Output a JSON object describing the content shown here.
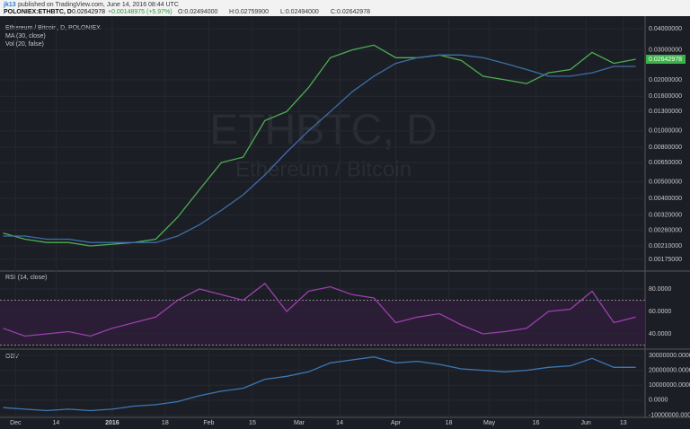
{
  "header": {
    "publisher": "jk13",
    "published": "published on TradingView.com, June 14, 2016 08:44 UTC",
    "symbol": "POLONIEX:ETHBTC, D",
    "last": "0.02642978",
    "change": "+0.00148975 (+5.97%)",
    "open": "O:0.02494000",
    "high": "H:0.02759900",
    "low": "L:0.02494000",
    "close": "C:0.02642978"
  },
  "chart_data": [
    {
      "type": "line",
      "title": "Ethereum / Bitcoin, D, POLONIEX",
      "notes": [
        "Vol (20, false)"
      ],
      "watermark": "ETHBTC, D",
      "watermark_sub": "Ethereum / Bitcoin",
      "log_scale": true,
      "x": [
        -4,
        3,
        10,
        17,
        24,
        31,
        38,
        45,
        52,
        59,
        66,
        73,
        80,
        87,
        94,
        101,
        108,
        115,
        122,
        129,
        136,
        143,
        150,
        157,
        164,
        171,
        178,
        185,
        192,
        199
      ],
      "xlim": [
        -5,
        202
      ],
      "xticks": [
        {
          "value": 0,
          "label": "Dec"
        },
        {
          "value": 13,
          "label": "14"
        },
        {
          "value": 31,
          "label": "2016"
        },
        {
          "value": 48,
          "label": "18"
        },
        {
          "value": 62,
          "label": "Feb"
        },
        {
          "value": 76,
          "label": "15"
        },
        {
          "value": 91,
          "label": "Mar"
        },
        {
          "value": 104,
          "label": "14"
        },
        {
          "value": 122,
          "label": "Apr"
        },
        {
          "value": 139,
          "label": "18"
        },
        {
          "value": 152,
          "label": "May"
        },
        {
          "value": 167,
          "label": "16"
        },
        {
          "value": 183,
          "label": "Jun"
        },
        {
          "value": 195,
          "label": "13"
        }
      ],
      "series": [
        {
          "name": "Ethereum / Bitcoin",
          "color": "#4caf50",
          "values": [
            0.0025,
            0.0023,
            0.0022,
            0.0022,
            0.0021,
            0.00215,
            0.0022,
            0.0023,
            0.0031,
            0.0045,
            0.0065,
            0.007,
            0.0115,
            0.013,
            0.018,
            0.027,
            0.03,
            0.032,
            0.027,
            0.027,
            0.028,
            0.026,
            0.021,
            0.02,
            0.019,
            0.022,
            0.023,
            0.029,
            0.025,
            0.02642978
          ]
        },
        {
          "name": "MA (30, close)",
          "color": "#3c6fa5",
          "values": [
            0.0024,
            0.0024,
            0.0023,
            0.0023,
            0.0022,
            0.0022,
            0.0022,
            0.0022,
            0.0024,
            0.0028,
            0.0034,
            0.0042,
            0.0055,
            0.0075,
            0.01,
            0.013,
            0.017,
            0.021,
            0.025,
            0.027,
            0.028,
            0.028,
            0.027,
            0.025,
            0.023,
            0.021,
            0.021,
            0.022,
            0.024,
            0.024
          ]
        }
      ],
      "last_label": {
        "value": 0.02642978,
        "label": "0.02642978"
      },
      "ylim": [
        0.00153,
        0.0463
      ],
      "yticks": [
        {
          "value": 0.04,
          "label": "0.04000000"
        },
        {
          "value": 0.03,
          "label": "0.03000000"
        },
        {
          "value": 0.02,
          "label": "0.02000000"
        },
        {
          "value": 0.016,
          "label": "0.01600000"
        },
        {
          "value": 0.013,
          "label": "0.01300000"
        },
        {
          "value": 0.01,
          "label": "0.01000000"
        },
        {
          "value": 0.008,
          "label": "0.00800000"
        },
        {
          "value": 0.0065,
          "label": "0.00650000"
        },
        {
          "value": 0.005,
          "label": "0.00500000"
        },
        {
          "value": 0.004,
          "label": "0.00400000"
        },
        {
          "value": 0.0032,
          "label": "0.00320000"
        },
        {
          "value": 0.0026,
          "label": "0.00260000"
        },
        {
          "value": 0.0021,
          "label": "0.00210000"
        },
        {
          "value": 0.00175,
          "label": "0.00175000"
        }
      ]
    },
    {
      "type": "line",
      "title": "RSI (14, close)",
      "bands": [
        30,
        70
      ],
      "series": [
        {
          "name": "RSI",
          "color": "#9c3fae",
          "values": [
            45,
            38,
            40,
            42,
            38,
            45,
            50,
            55,
            70,
            80,
            75,
            70,
            85,
            60,
            78,
            82,
            75,
            72,
            50,
            55,
            58,
            48,
            40,
            42,
            45,
            60,
            62,
            78,
            50,
            55
          ]
        }
      ],
      "ylim": [
        28,
        93.6
      ],
      "yticks": [
        {
          "value": 80,
          "label": "80.0000"
        },
        {
          "value": 60,
          "label": "60.0000"
        },
        {
          "value": 40,
          "label": "40.0000"
        }
      ]
    },
    {
      "type": "line",
      "title": "OBV",
      "series": [
        {
          "name": "OBV",
          "color": "#3c78b4",
          "values": [
            -5000000,
            -6000000,
            -7000000,
            -6000000,
            -7000000,
            -6000000,
            -4000000,
            -3000000,
            -1000000,
            3000000,
            6000000,
            8000000,
            14000000,
            16000000,
            19000000,
            25000000,
            27000000,
            29000000,
            25000000,
            26000000,
            24000000,
            21000000,
            20000000,
            19000000,
            20000000,
            22000000,
            23000000,
            28000000,
            22000000,
            22000000
          ]
        }
      ],
      "ylim": [
        -11500000,
        33000000
      ],
      "yticks": [
        {
          "value": 30000000,
          "label": "30000000.0000"
        },
        {
          "value": 20000000,
          "label": "20000000.0000"
        },
        {
          "value": 10000000,
          "label": "10000000.0000"
        },
        {
          "value": 0,
          "label": "0.0000"
        },
        {
          "value": -10000000,
          "label": "-10000000.0000"
        }
      ]
    }
  ]
}
